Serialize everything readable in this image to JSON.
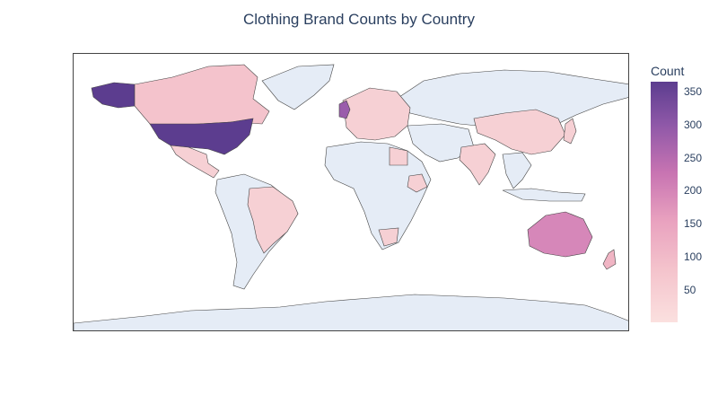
{
  "chart_data": {
    "type": "choropleth",
    "title": "Clothing Brand Counts by Country",
    "colorbar": {
      "title": "Count",
      "range": [
        1,
        365
      ],
      "ticks": [
        50,
        100,
        150,
        200,
        250,
        300,
        350
      ],
      "scale": [
        "#fbe0df",
        "#f4c3cc",
        "#e9a2bf",
        "#c874b2",
        "#8f58a8",
        "#5c3d8f"
      ]
    },
    "values": [
      {
        "country": "United States",
        "count": 365
      },
      {
        "country": "United Kingdom",
        "count": 290
      },
      {
        "country": "Australia",
        "count": 210
      },
      {
        "country": "Canada",
        "count": 95
      },
      {
        "country": "Brazil",
        "count": 30
      },
      {
        "country": "Mexico",
        "count": 25
      },
      {
        "country": "China",
        "count": 35
      },
      {
        "country": "India",
        "count": 25
      },
      {
        "country": "Japan",
        "count": 30
      },
      {
        "country": "France",
        "count": 60
      },
      {
        "country": "Germany",
        "count": 40
      },
      {
        "country": "Italy",
        "count": 55
      },
      {
        "country": "Spain",
        "count": 30
      },
      {
        "country": "Sweden",
        "count": 45
      },
      {
        "country": "New Zealand",
        "count": 80
      },
      {
        "country": "South Africa",
        "count": 20
      },
      {
        "country": "Ethiopia",
        "count": 15
      },
      {
        "country": "Egypt",
        "count": 10
      }
    ],
    "no_data_color": "#e5ecf6"
  }
}
